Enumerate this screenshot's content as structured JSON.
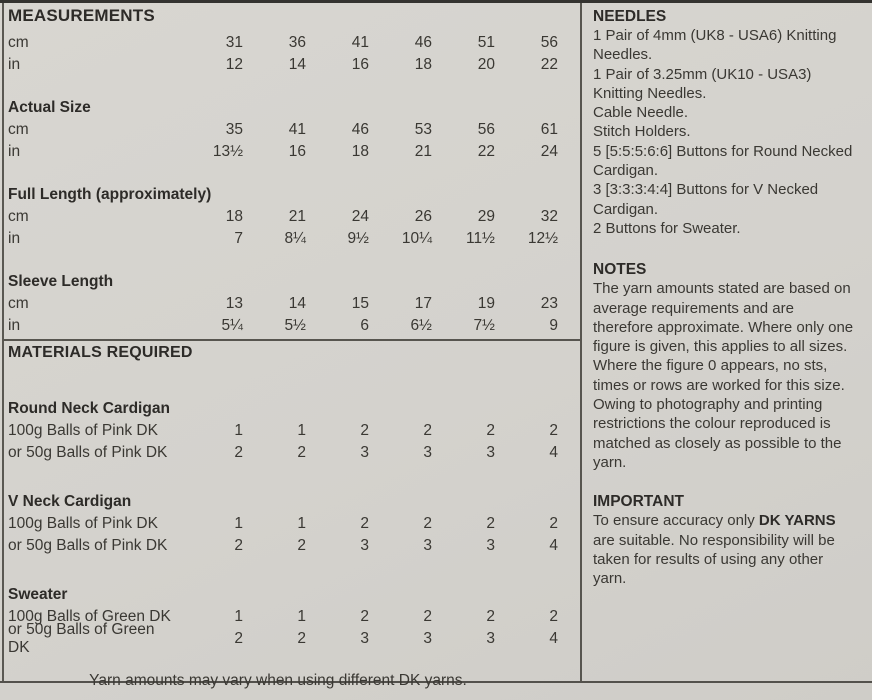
{
  "measurements": {
    "title": "MEASUREMENTS",
    "groups": [
      {
        "label": "",
        "rows": [
          {
            "unit": "cm",
            "values": [
              "31",
              "36",
              "41",
              "46",
              "51",
              "56"
            ]
          },
          {
            "unit": "in",
            "values": [
              "12",
              "14",
              "16",
              "18",
              "20",
              "22"
            ]
          }
        ]
      },
      {
        "label": "Actual Size",
        "rows": [
          {
            "unit": "cm",
            "values": [
              "35",
              "41",
              "46",
              "53",
              "56",
              "61"
            ]
          },
          {
            "unit": "in",
            "values": [
              "13½",
              "16",
              "18",
              "21",
              "22",
              "24"
            ]
          }
        ]
      },
      {
        "label": "Full Length (approximately)",
        "rows": [
          {
            "unit": "cm",
            "values": [
              "18",
              "21",
              "24",
              "26",
              "29",
              "32"
            ]
          },
          {
            "unit": "in",
            "values": [
              "7",
              "8¼",
              "9½",
              "10¼",
              "11½",
              "12½"
            ]
          }
        ]
      },
      {
        "label": "Sleeve Length",
        "rows": [
          {
            "unit": "cm",
            "values": [
              "13",
              "14",
              "15",
              "17",
              "19",
              "23"
            ]
          },
          {
            "unit": "in",
            "values": [
              "5¼",
              "5½",
              "6",
              "6½",
              "7½",
              "9"
            ]
          }
        ]
      }
    ]
  },
  "materials": {
    "title": "MATERIALS REQUIRED",
    "groups": [
      {
        "label": "Round Neck Cardigan",
        "rows": [
          {
            "unit": "100g Balls of Pink DK",
            "values": [
              "1",
              "1",
              "2",
              "2",
              "2",
              "2"
            ]
          },
          {
            "unit": "or 50g Balls of Pink DK",
            "values": [
              "2",
              "2",
              "3",
              "3",
              "3",
              "4"
            ]
          }
        ]
      },
      {
        "label": "V Neck Cardigan",
        "rows": [
          {
            "unit": "100g Balls of Pink DK",
            "values": [
              "1",
              "1",
              "2",
              "2",
              "2",
              "2"
            ]
          },
          {
            "unit": "or 50g Balls of Pink DK",
            "values": [
              "2",
              "2",
              "3",
              "3",
              "3",
              "4"
            ]
          }
        ]
      },
      {
        "label": "Sweater",
        "rows": [
          {
            "unit": "100g Balls of Green DK",
            "values": [
              "1",
              "1",
              "2",
              "2",
              "2",
              "2"
            ]
          },
          {
            "unit": "or 50g Balls of Green DK",
            "values": [
              "2",
              "2",
              "3",
              "3",
              "3",
              "4"
            ]
          }
        ]
      }
    ],
    "footnote": "Yarn amounts may vary when using different DK yarns."
  },
  "needles": {
    "title": "NEEDLES",
    "items": [
      "1 Pair of 4mm (UK8 - USA6) Knitting Needles.",
      "1 Pair of 3.25mm (UK10 - USA3) Knitting Needles.",
      "Cable Needle.",
      "Stitch Holders.",
      "5 [5:5:5:6:6] Buttons for Round Necked Cardigan.",
      "3 [3:3:3:4:4] Buttons for V Necked Cardigan.",
      "2 Buttons for Sweater."
    ]
  },
  "notes": {
    "title": "NOTES",
    "body": "The yarn amounts stated are based on average requirements and are therefore approximate. Where only one figure is given, this applies to all sizes. Where the figure 0 appears, no sts, times or rows are worked for this size. Owing to photography and printing restrictions the colour reproduced is matched as closely as possible to the yarn."
  },
  "important": {
    "title": "IMPORTANT",
    "prefix": "To ensure accuracy only ",
    "emphasis": "DK YARNS",
    "suffix": " are suitable. No responsibility will be taken for results of using any other yarn."
  },
  "colors": {
    "paper": "#d4d2cd",
    "ink": "#3a3833",
    "rule": "#57554f"
  }
}
